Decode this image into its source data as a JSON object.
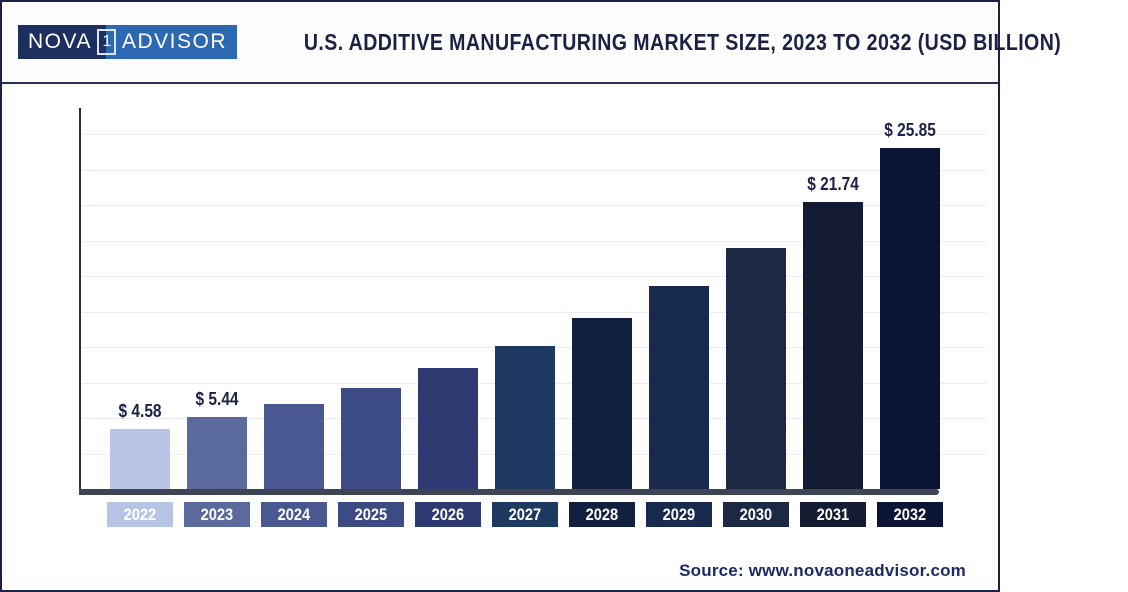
{
  "header": {
    "logo": {
      "part1": "NOVA",
      "boxed": "1",
      "part2": "ADVISOR"
    },
    "title": "U.S. ADDITIVE MANUFACTURING MARKET SIZE, 2023 TO 2032 (USD BILLION)"
  },
  "chart_data": {
    "type": "bar",
    "title": "U.S. Additive Manufacturing Market Size, 2023 to 2032 (USD Billion)",
    "unit": "USD Billion",
    "categories": [
      "2022",
      "2023",
      "2024",
      "2025",
      "2026",
      "2027",
      "2028",
      "2029",
      "2030",
      "2031",
      "2032"
    ],
    "values": [
      4.58,
      5.44,
      6.47,
      7.69,
      9.14,
      10.87,
      12.93,
      15.37,
      18.28,
      21.74,
      25.85
    ],
    "value_labels": [
      "$ 4.58",
      "$ 5.44",
      null,
      null,
      null,
      null,
      null,
      null,
      null,
      "$ 21.74",
      "$ 25.85"
    ],
    "bar_colors": [
      "#b8c4e6",
      "#5a6a9d",
      "#4a5891",
      "#3d4b85",
      "#2e3b73",
      "#1e3a63",
      "#12203f",
      "#17294c",
      "#1b2945",
      "#131c33",
      "#0b1434"
    ],
    "ylim": [
      0,
      27
    ],
    "grid": "horizontal",
    "gridline_color": "#ebecf2",
    "axis_color": "#3e4453",
    "label_color": "#1a2144"
  },
  "brand": {
    "navy": "#1c2f5e",
    "blue": "#2d68b2"
  },
  "footer": {
    "source": "Source: www.novaoneadvisor.com"
  }
}
